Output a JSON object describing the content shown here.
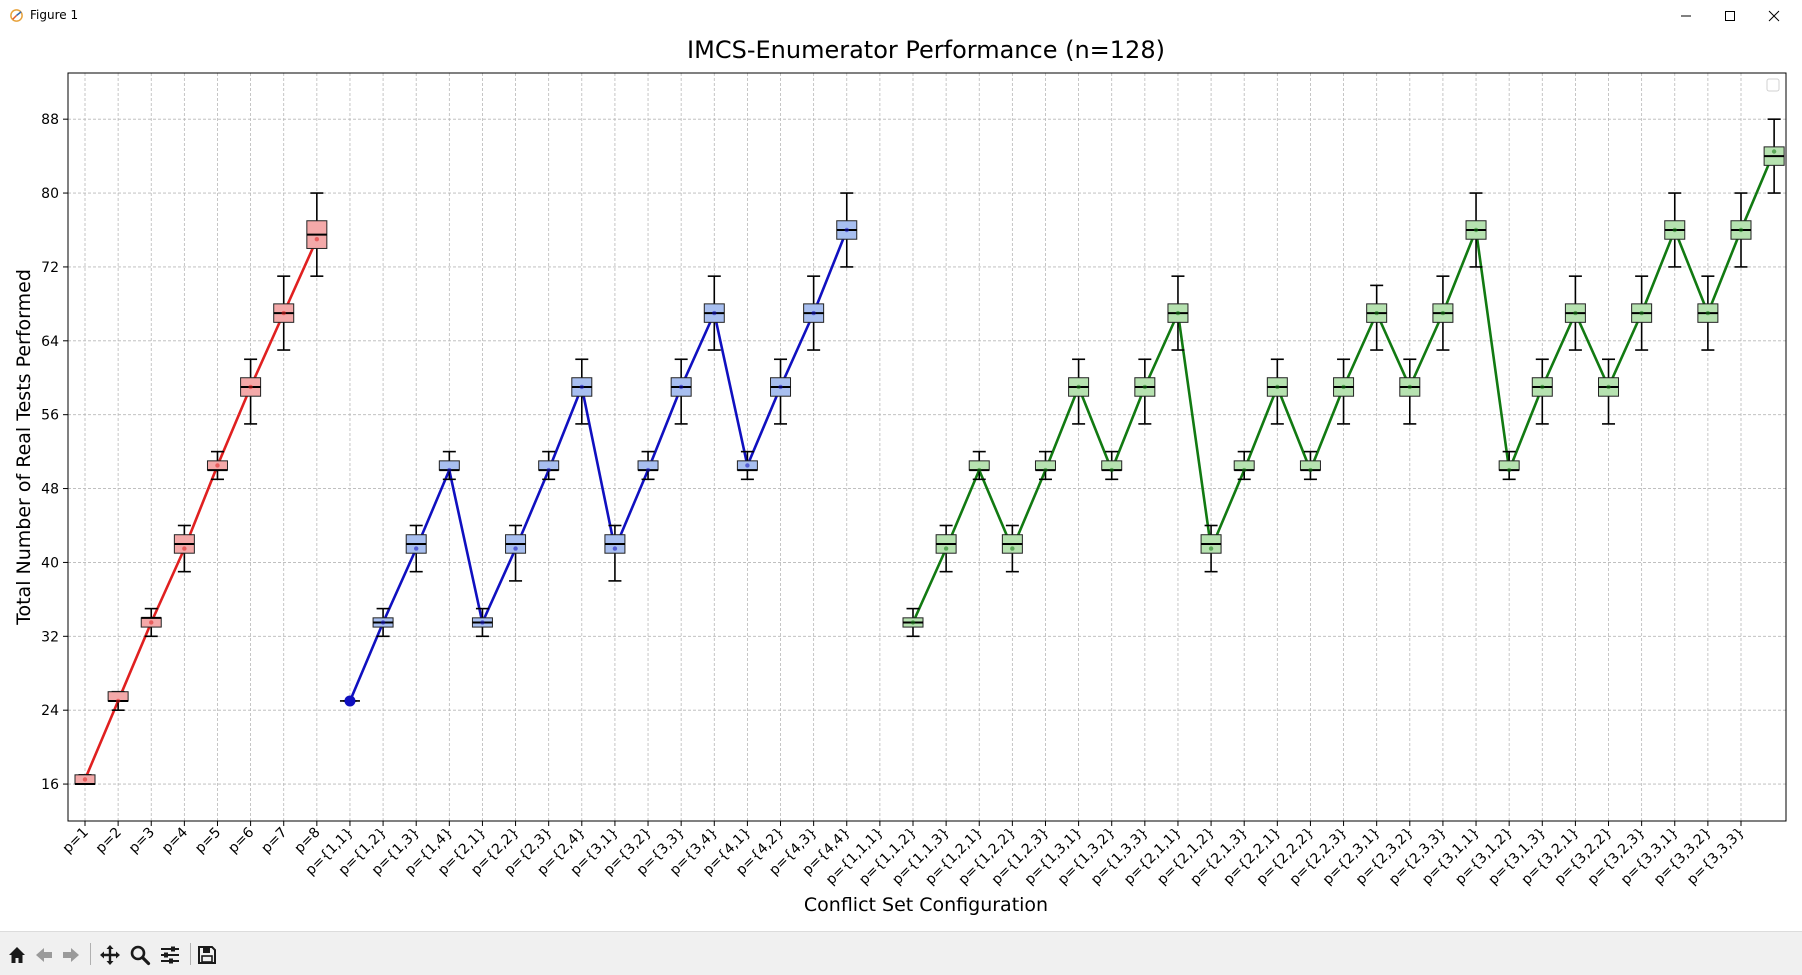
{
  "window": {
    "title": "Figure 1"
  },
  "toolbar": {
    "buttons": [
      "home-icon",
      "back-icon",
      "forward-icon",
      "pan-icon",
      "zoom-icon",
      "configure-icon",
      "save-icon"
    ]
  },
  "colors": {
    "single": "#e02020",
    "single_fill": "#f4a9a9",
    "pair": "#1010c0",
    "pair_fill": "#a8bff0",
    "triple": "#127a12",
    "triple_fill": "#b6e2b0"
  },
  "chart_data": {
    "type": "box",
    "title": "IMCS-Enumerator Performance (n=128)",
    "xlabel": "Conflict Set Configuration",
    "ylabel": "Total Number of Real Tests Performed",
    "ylim": [
      12,
      93
    ],
    "yticks": [
      16,
      24,
      32,
      40,
      48,
      56,
      64,
      72,
      80,
      88
    ],
    "grid": true,
    "legend": "top-right (empty)",
    "categories": [
      "p=1",
      "p=2",
      "p=3",
      "p=4",
      "p=5",
      "p=6",
      "p=7",
      "p=8",
      "p={1,1}",
      "p={1,2}",
      "p={1,3}",
      "p={1,4}",
      "p={2,1}",
      "p={2,2}",
      "p={2,3}",
      "p={2,4}",
      "p={3,1}",
      "p={3,2}",
      "p={3,3}",
      "p={3,4}",
      "p={4,1}",
      "p={4,2}",
      "p={4,3}",
      "p={4,4}",
      "p={1,1,1}",
      "p={1,1,2}",
      "p={1,1,3}",
      "p={1,2,1}",
      "p={1,2,2}",
      "p={1,2,3}",
      "p={1,3,1}",
      "p={1,3,2}",
      "p={1,3,3}",
      "p={2,1,1}",
      "p={2,1,2}",
      "p={2,1,3}",
      "p={2,2,1}",
      "p={2,2,2}",
      "p={2,2,3}",
      "p={2,3,1}",
      "p={2,3,2}",
      "p={2,3,3}",
      "p={3,1,1}",
      "p={3,1,2}",
      "p={3,1,3}",
      "p={3,2,1}",
      "p={3,2,2}",
      "p={3,2,3}",
      "p={3,3,1}",
      "p={3,3,2}",
      "p={3,3,3}"
    ],
    "series": [
      {
        "group": "single",
        "start_index": 0,
        "boxes": [
          {
            "wlo": 16,
            "q1": 16,
            "med": 16,
            "q3": 17,
            "whi": 17
          },
          {
            "wlo": 24,
            "q1": 25,
            "med": 25,
            "q3": 26,
            "whi": 26
          },
          {
            "wlo": 32,
            "q1": 33,
            "med": 34,
            "q3": 34,
            "whi": 35
          },
          {
            "wlo": 39,
            "q1": 41,
            "med": 42,
            "q3": 43,
            "whi": 44
          },
          {
            "wlo": 49,
            "q1": 50,
            "med": 50,
            "q3": 51,
            "whi": 52
          },
          {
            "wlo": 55,
            "q1": 58,
            "med": 59,
            "q3": 60,
            "whi": 62
          },
          {
            "wlo": 63,
            "q1": 66,
            "med": 67,
            "q3": 68,
            "whi": 71
          },
          {
            "wlo": 71,
            "q1": 74,
            "med": 75.5,
            "q3": 77,
            "whi": 80
          }
        ],
        "line": [
          16.5,
          25,
          33.5,
          41.5,
          50.5,
          59,
          67,
          75
        ]
      },
      {
        "group": "pair",
        "start_index": 8,
        "boxes": [
          {
            "wlo": 25,
            "q1": 25,
            "med": 25,
            "q3": 25,
            "whi": 25
          },
          {
            "wlo": 32,
            "q1": 33,
            "med": 33.5,
            "q3": 34,
            "whi": 35
          },
          {
            "wlo": 39,
            "q1": 41,
            "med": 42,
            "q3": 43,
            "whi": 44
          },
          {
            "wlo": 49,
            "q1": 50,
            "med": 50,
            "q3": 51,
            "whi": 52
          },
          {
            "wlo": 32,
            "q1": 33,
            "med": 33.5,
            "q3": 34,
            "whi": 35
          },
          {
            "wlo": 38,
            "q1": 41,
            "med": 42,
            "q3": 43,
            "whi": 44
          },
          {
            "wlo": 49,
            "q1": 50,
            "med": 50,
            "q3": 51,
            "whi": 52
          },
          {
            "wlo": 55,
            "q1": 58,
            "med": 59,
            "q3": 60,
            "whi": 62
          },
          {
            "wlo": 38,
            "q1": 41,
            "med": 42,
            "q3": 43,
            "whi": 44
          },
          {
            "wlo": 49,
            "q1": 50,
            "med": 50,
            "q3": 51,
            "whi": 52
          },
          {
            "wlo": 55,
            "q1": 58,
            "med": 59,
            "q3": 60,
            "whi": 62
          },
          {
            "wlo": 63,
            "q1": 66,
            "med": 67,
            "q3": 68,
            "whi": 71
          },
          {
            "wlo": 49,
            "q1": 50,
            "med": 50,
            "q3": 51,
            "whi": 52
          },
          {
            "wlo": 55,
            "q1": 58,
            "med": 59,
            "q3": 60,
            "whi": 62
          },
          {
            "wlo": 63,
            "q1": 66,
            "med": 67,
            "q3": 68,
            "whi": 71
          },
          {
            "wlo": 72,
            "q1": 75,
            "med": 76,
            "q3": 77,
            "whi": 80
          }
        ],
        "line": [
          25,
          33.5,
          41.5,
          50,
          33.5,
          41.5,
          50,
          59,
          41.5,
          50,
          59,
          67,
          50.5,
          59,
          67,
          76
        ]
      },
      {
        "group": "triple",
        "start_index": 25,
        "boxes": [
          {
            "wlo": 32,
            "q1": 33,
            "med": 33.5,
            "q3": 34,
            "whi": 35
          },
          {
            "wlo": 39,
            "q1": 41,
            "med": 42,
            "q3": 43,
            "whi": 44
          },
          {
            "wlo": 49,
            "q1": 50,
            "med": 50,
            "q3": 51,
            "whi": 52
          },
          {
            "wlo": 39,
            "q1": 41,
            "med": 42,
            "q3": 43,
            "whi": 44
          },
          {
            "wlo": 49,
            "q1": 50,
            "med": 50,
            "q3": 51,
            "whi": 52
          },
          {
            "wlo": 55,
            "q1": 58,
            "med": 59,
            "q3": 60,
            "whi": 62
          },
          {
            "wlo": 49,
            "q1": 50,
            "med": 50,
            "q3": 51,
            "whi": 52
          },
          {
            "wlo": 55,
            "q1": 58,
            "med": 59,
            "q3": 60,
            "whi": 62
          },
          {
            "wlo": 63,
            "q1": 66,
            "med": 67,
            "q3": 68,
            "whi": 71
          },
          {
            "wlo": 39,
            "q1": 41,
            "med": 42,
            "q3": 43,
            "whi": 44
          },
          {
            "wlo": 49,
            "q1": 50,
            "med": 50,
            "q3": 51,
            "whi": 52
          },
          {
            "wlo": 55,
            "q1": 58,
            "med": 59,
            "q3": 60,
            "whi": 62
          },
          {
            "wlo": 49,
            "q1": 50,
            "med": 50,
            "q3": 51,
            "whi": 52
          },
          {
            "wlo": 55,
            "q1": 58,
            "med": 59,
            "q3": 60,
            "whi": 62
          },
          {
            "wlo": 63,
            "q1": 66,
            "med": 67,
            "q3": 68,
            "whi": 70
          },
          {
            "wlo": 55,
            "q1": 58,
            "med": 59,
            "q3": 60,
            "whi": 62
          },
          {
            "wlo": 63,
            "q1": 66,
            "med": 67,
            "q3": 68,
            "whi": 71
          },
          {
            "wlo": 72,
            "q1": 75,
            "med": 76,
            "q3": 77,
            "whi": 80
          },
          {
            "wlo": 49,
            "q1": 50,
            "med": 50,
            "q3": 51,
            "whi": 52
          },
          {
            "wlo": 55,
            "q1": 58,
            "med": 59,
            "q3": 60,
            "whi": 62
          },
          {
            "wlo": 63,
            "q1": 66,
            "med": 67,
            "q3": 68,
            "whi": 71
          },
          {
            "wlo": 55,
            "q1": 58,
            "med": 59,
            "q3": 60,
            "whi": 62
          },
          {
            "wlo": 63,
            "q1": 66,
            "med": 67,
            "q3": 68,
            "whi": 71
          },
          {
            "wlo": 72,
            "q1": 75,
            "med": 76,
            "q3": 77,
            "whi": 80
          },
          {
            "wlo": 63,
            "q1": 66,
            "med": 67,
            "q3": 68,
            "whi": 71
          },
          {
            "wlo": 72,
            "q1": 75,
            "med": 76,
            "q3": 77,
            "whi": 80
          },
          {
            "wlo": 80,
            "q1": 83,
            "med": 84,
            "q3": 85,
            "whi": 88
          }
        ],
        "line": [
          33.5,
          41.5,
          50,
          41.5,
          50,
          59,
          50,
          59,
          67,
          41.5,
          50,
          59,
          50,
          59,
          67,
          59,
          67,
          76,
          50,
          59,
          67,
          59,
          67,
          76,
          67,
          76,
          84.5
        ]
      }
    ]
  }
}
